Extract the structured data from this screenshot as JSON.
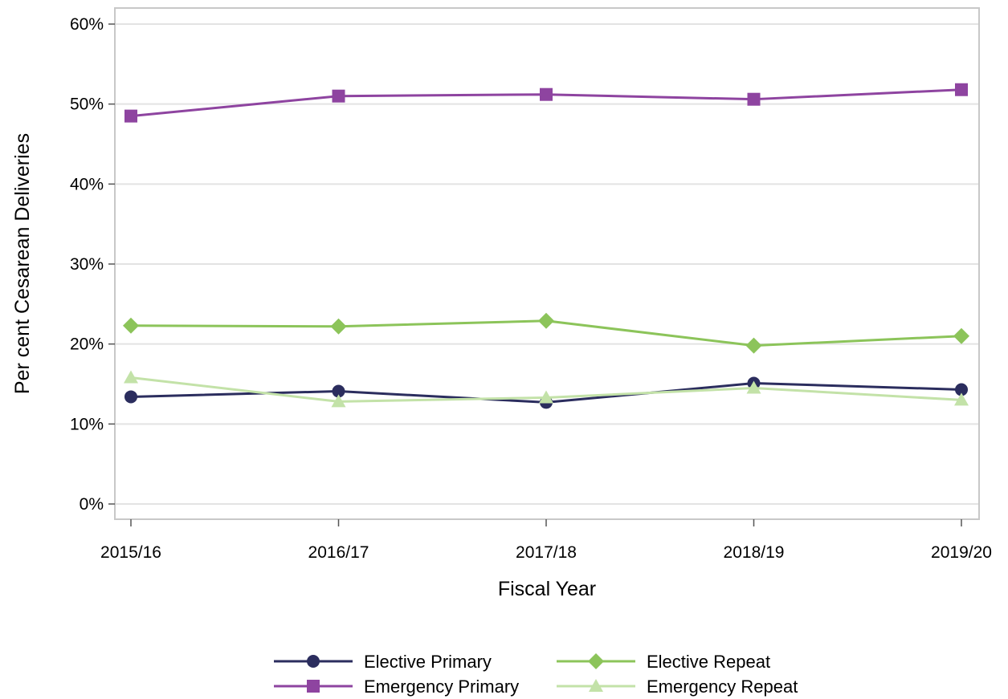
{
  "chart_data": {
    "type": "line",
    "title": "",
    "xlabel": "Fiscal Year",
    "ylabel": "Per cent Cesarean Deliveries",
    "categories": [
      "2015/16",
      "2016/17",
      "2017/18",
      "2018/19",
      "2019/20"
    ],
    "ylim": [
      0,
      60
    ],
    "yticks": [
      0,
      10,
      20,
      30,
      40,
      50,
      60
    ],
    "ytick_labels": [
      "0%",
      "10%",
      "20%",
      "30%",
      "40%",
      "50%",
      "60%"
    ],
    "grid": true,
    "legend_position": "bottom",
    "series": [
      {
        "name": "Elective Primary",
        "values": [
          13.4,
          14.1,
          12.7,
          15.1,
          14.3
        ],
        "color": "#2b2d5e",
        "marker": "circle"
      },
      {
        "name": "Emergency Primary",
        "values": [
          48.5,
          51.0,
          51.2,
          50.6,
          51.8
        ],
        "color": "#8e44a0",
        "marker": "square"
      },
      {
        "name": "Elective Repeat",
        "values": [
          22.3,
          22.2,
          22.9,
          19.8,
          21.0
        ],
        "color": "#8cc45a",
        "marker": "diamond"
      },
      {
        "name": "Emergency Repeat",
        "values": [
          15.8,
          12.8,
          13.3,
          14.5,
          13.0
        ],
        "color": "#c3e2a8",
        "marker": "triangle"
      }
    ]
  }
}
